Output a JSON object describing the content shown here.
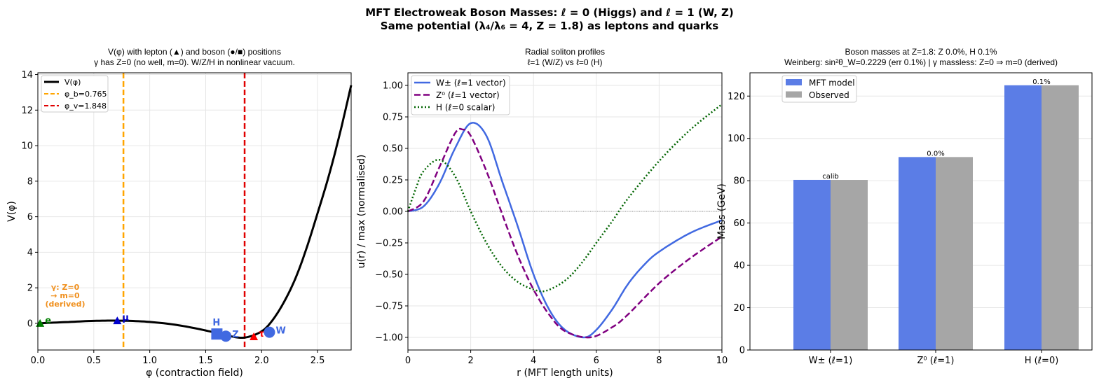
{
  "suptitle": [
    "MFT Electroweak Boson Masses: ℓ = 0 (Higgs) and ℓ = 1 (W, Z)",
    "Same potential (λ₄/λ₆ = 4, Z = 1.8) as leptons and quarks"
  ],
  "chart_data": [
    {
      "type": "line",
      "title": [
        "V(φ) with lepton (▲) and boson (●/■) positions",
        "γ has Z=0 (no well, m=0). W/Z/H in nonlinear vacuum."
      ],
      "xlabel": "φ (contraction field)",
      "ylabel": "V(φ)",
      "xlim": [
        0,
        2.8
      ],
      "ylim": [
        -1.5,
        14.1
      ],
      "xticks": [
        0,
        0.5,
        1,
        1.5,
        2,
        2.5
      ],
      "xtick_labels": [
        "0.0",
        "0.5",
        "1.0",
        "1.5",
        "2.0",
        "2.5"
      ],
      "yticks": [
        0,
        2,
        4,
        6,
        8,
        10,
        12,
        14
      ],
      "grid": true,
      "legend": "top-left",
      "series": [
        {
          "name": "V(φ)",
          "color": "#000000",
          "style": "solid",
          "x": [
            0,
            0.25,
            0.5,
            0.75,
            1.0,
            1.25,
            1.5,
            1.7,
            1.85,
            2.0,
            2.1,
            2.2,
            2.3,
            2.4,
            2.5,
            2.6,
            2.7,
            2.8
          ],
          "y": [
            0,
            0.07,
            0.14,
            0.15,
            0.08,
            -0.1,
            -0.4,
            -0.7,
            -0.8,
            -0.45,
            0.2,
            1.2,
            2.5,
            4.2,
            6.2,
            8.3,
            10.7,
            13.4
          ]
        }
      ],
      "vlines": [
        {
          "name": "φ_b=0.765",
          "x": 0.765,
          "color": "#ffa500"
        },
        {
          "name": "φ_v=1.848",
          "x": 1.848,
          "color": "#e00000"
        }
      ],
      "markers": [
        {
          "label": "e",
          "x": 0.02,
          "y": 0,
          "shape": "triangle",
          "color": "#008000"
        },
        {
          "label": "μ",
          "x": 0.71,
          "y": 0.15,
          "shape": "triangle",
          "color": "#0000cc"
        },
        {
          "label": "τ",
          "x": 1.93,
          "y": -0.75,
          "shape": "triangle",
          "color": "#ff0000"
        },
        {
          "label": "H",
          "x": 1.6,
          "y": -0.6,
          "shape": "square",
          "color": "#4169e1"
        },
        {
          "label": "Z",
          "x": 1.68,
          "y": -0.72,
          "shape": "circle",
          "color": "#4169e1"
        },
        {
          "label": "W",
          "x": 2.07,
          "y": -0.5,
          "shape": "circle",
          "color": "#4169e1"
        }
      ],
      "annotation": [
        "γ: Z=0",
        "→ m=0",
        "(derived)"
      ]
    },
    {
      "type": "line",
      "title": [
        "Radial soliton profiles",
        "ℓ=1 (W/Z) vs ℓ=0 (H)"
      ],
      "xlabel": "r (MFT length units)",
      "ylabel": "u(r) / max  (normalised)",
      "xlim": [
        0,
        10
      ],
      "ylim": [
        -1.1,
        1.1
      ],
      "xticks": [
        0,
        2,
        4,
        6,
        8,
        10
      ],
      "yticks": [
        -1.0,
        -0.75,
        -0.5,
        -0.25,
        0,
        0.25,
        0.5,
        0.75,
        1.0
      ],
      "ytick_labels": [
        "−1.00",
        "−0.75",
        "−0.50",
        "−0.25",
        "0.00",
        "0.25",
        "0.50",
        "0.75",
        "1.00"
      ],
      "grid": true,
      "legend": "top-left",
      "series": [
        {
          "name": "W± (ℓ=1 vector)",
          "color": "#4169e1",
          "style": "solid",
          "x": [
            0,
            0.5,
            1,
            1.5,
            2,
            2.5,
            3,
            3.5,
            4,
            4.5,
            5,
            5.6,
            6,
            6.5,
            7,
            7.5,
            8,
            9,
            10
          ],
          "y": [
            0,
            0.04,
            0.22,
            0.5,
            0.7,
            0.6,
            0.24,
            -0.12,
            -0.5,
            -0.78,
            -0.94,
            -1.0,
            -0.94,
            -0.78,
            -0.58,
            -0.43,
            -0.32,
            -0.17,
            -0.07
          ]
        },
        {
          "name": "Z⁰ (ℓ=1 vector)",
          "color": "#800080",
          "style": "dashed",
          "x": [
            0,
            0.5,
            1,
            1.5,
            1.75,
            2,
            2.5,
            3,
            3.5,
            4,
            4.5,
            5,
            5.8,
            6.5,
            7,
            8,
            9,
            10
          ],
          "y": [
            0,
            0.08,
            0.35,
            0.62,
            0.65,
            0.6,
            0.32,
            -0.02,
            -0.35,
            -0.62,
            -0.82,
            -0.95,
            -1.0,
            -0.92,
            -0.82,
            -0.57,
            -0.37,
            -0.2
          ]
        },
        {
          "name": "H (ℓ=0 scalar)",
          "color": "#006400",
          "style": "dotted",
          "x": [
            0,
            0.25,
            0.5,
            1,
            1.5,
            2,
            2.5,
            3,
            3.5,
            4,
            4.4,
            5,
            5.5,
            6,
            6.5,
            7,
            8,
            9,
            10
          ],
          "y": [
            0,
            0.18,
            0.32,
            0.41,
            0.28,
            0,
            -0.25,
            -0.44,
            -0.56,
            -0.62,
            -0.63,
            -0.55,
            -0.42,
            -0.25,
            -0.08,
            0.1,
            0.4,
            0.65,
            0.85
          ]
        }
      ]
    },
    {
      "type": "bar",
      "title": [
        "Boson masses at Z=1.8:  Z 0.0%,  H 0.1%",
        "Weinberg: sin²θ_W=0.2229 (err 0.1%)  | γ massless: Z=0 ⇒ m=0 (derived)"
      ],
      "ylabel": "Mass (GeV)",
      "ylim": [
        0,
        131
      ],
      "yticks": [
        0,
        20,
        40,
        60,
        80,
        100,
        120
      ],
      "grid": true,
      "legend": "top-left",
      "categories": [
        "W± (ℓ=1)",
        "Z⁰ (ℓ=1)",
        "H (ℓ=0)"
      ],
      "series": [
        {
          "name": "MFT model",
          "color": "#5b7de6",
          "values": [
            80.4,
            91.19,
            125.1
          ]
        },
        {
          "name": "Observed",
          "color": "#a6a6a6",
          "values": [
            80.38,
            91.19,
            125.1
          ]
        }
      ],
      "data_labels": [
        "calib",
        "0.0%",
        "0.1%"
      ]
    }
  ]
}
